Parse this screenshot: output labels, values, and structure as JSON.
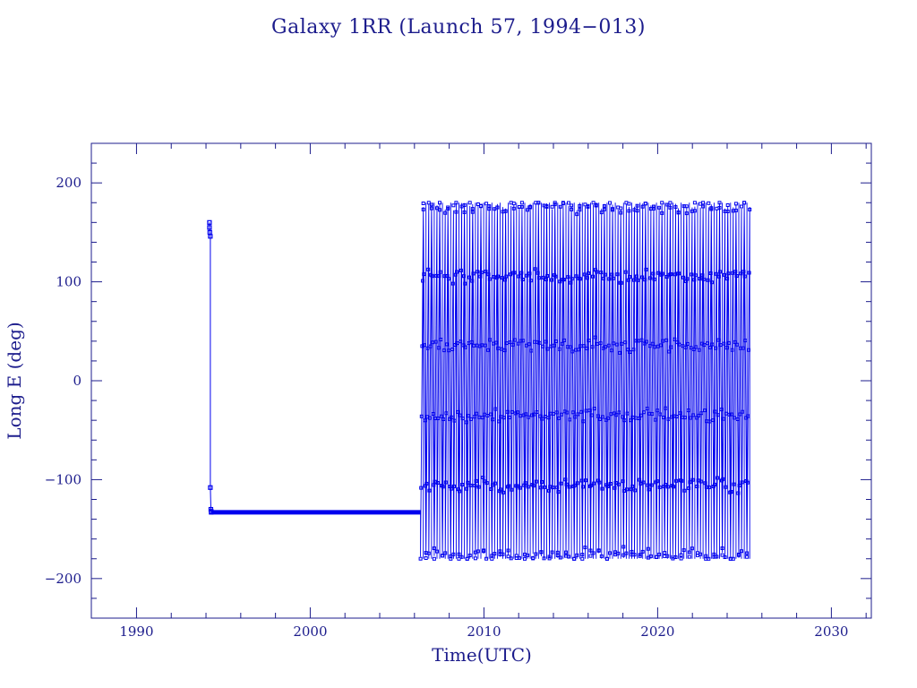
{
  "chart_data": {
    "type": "scatter",
    "title": "Galaxy 1RR (Launch 57, 1994−013)",
    "xlabel": "Time(UTC)",
    "ylabel": "Long E (deg)",
    "xlim": [
      1987.4,
      2032.3
    ],
    "ylim": [
      -240,
      240
    ],
    "x_ticks": [
      1990,
      2000,
      2010,
      2020,
      2030
    ],
    "x_tick_labels": [
      "1990",
      "2000",
      "2010",
      "2020",
      "2030"
    ],
    "y_ticks": [
      -200,
      -100,
      0,
      100,
      200
    ],
    "y_tick_labels": [
      "−200",
      "−100",
      "0",
      "100",
      "200"
    ],
    "grid": false,
    "legend": "none",
    "series": [
      {
        "values_description": "longitude history",
        "segments": [
          {
            "kind": "points",
            "x": [
              1994.2,
              1994.2,
              1994.22,
              1994.25,
              1994.25,
              1994.28,
              1994.3,
              1994.3
            ],
            "y": [
              160,
              155,
              150,
              146,
              -108,
              -130,
              -132,
              -133
            ]
          },
          {
            "kind": "station",
            "x": [
              1994.3,
              2006.35
            ],
            "y": [
              -133,
              -133
            ]
          },
          {
            "kind": "drift",
            "x_start": 2006.35,
            "x_end": 2025.3,
            "cycles": 120,
            "y_min": -180,
            "y_max": 180,
            "start_value": -133,
            "end_value": 50
          }
        ]
      }
    ],
    "colors": {
      "data": "#0000ee",
      "axes": "#1c1c8c"
    }
  }
}
